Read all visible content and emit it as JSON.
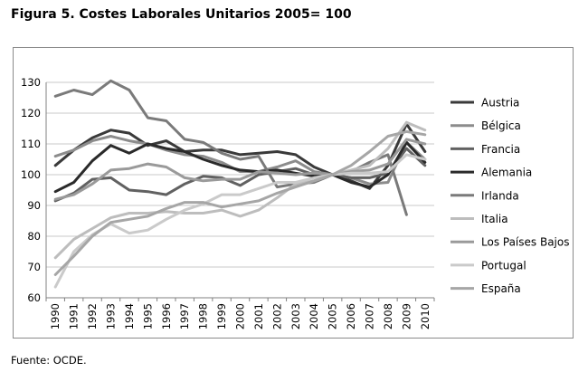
{
  "title": "Figura 5. Costes Laborales Unitarios 2005= 100",
  "source": "Fuente: OCDE.",
  "chart_data": {
    "type": "line",
    "title": "Figura 5. Costes Laborales Unitarios 2005= 100",
    "xlabel": "",
    "ylabel": "",
    "ylim": [
      60,
      130
    ],
    "yticks": [
      60,
      70,
      80,
      90,
      100,
      110,
      120,
      130
    ],
    "grid": true,
    "legend": "right",
    "x": [
      "1990",
      "1991",
      "1992",
      "1993",
      "1994",
      "1995",
      "1996",
      "1997",
      "1998",
      "1999",
      "2000",
      "2001",
      "2002",
      "2003",
      "2004",
      "2005",
      "2006",
      "2007",
      "2008",
      "2009",
      "2010"
    ],
    "series": [
      {
        "name": "Austria",
        "color": "#3a3a3a",
        "values": [
          103,
          108,
          112,
          114.5,
          113.5,
          109.5,
          111,
          107.5,
          108,
          108,
          106.5,
          107,
          107.5,
          106.5,
          102.5,
          100,
          98,
          95.5,
          103,
          116.5,
          107.5
        ]
      },
      {
        "name": "Bélgica",
        "color": "#8c8c8c",
        "values": [
          106,
          108,
          111,
          112.5,
          111,
          110,
          108,
          106.5,
          106,
          104,
          101,
          101,
          102.5,
          104.5,
          101,
          100,
          99,
          97,
          97.5,
          110.5,
          105
        ]
      },
      {
        "name": "Francia",
        "color": "#616161",
        "values": [
          91.5,
          94,
          98.5,
          99,
          95,
          94.5,
          93.5,
          97,
          99.5,
          99,
          96.5,
          100,
          101,
          102,
          100,
          100,
          99,
          99,
          100.5,
          108.5,
          103
        ]
      },
      {
        "name": "Alemania",
        "color": "#2a2a2a",
        "values": [
          94.5,
          97.5,
          104.5,
          109.5,
          107,
          110,
          108.5,
          107.5,
          105,
          103,
          101.5,
          101,
          101.5,
          100.5,
          99.5,
          100,
          97.5,
          96,
          100,
          110.5,
          104
        ]
      },
      {
        "name": "Irlanda",
        "color": "#7a7a7a",
        "values": [
          125.5,
          127.5,
          126,
          130.5,
          127.5,
          118.5,
          117.5,
          111.5,
          110.5,
          107,
          105,
          106,
          96,
          97,
          97.5,
          100,
          101,
          104,
          106.5,
          87,
          null
        ]
      },
      {
        "name": "Italia",
        "color": "#bdbdbd",
        "values": [
          73,
          79,
          82.5,
          86,
          87.5,
          87.5,
          88,
          87.5,
          87.5,
          88.5,
          86.5,
          88.5,
          92.5,
          97,
          98,
          100,
          101.5,
          103,
          108.5,
          117,
          114.5
        ]
      },
      {
        "name": "Los Países Bajos",
        "color": "#9a9a9a",
        "values": [
          92,
          93.5,
          97,
          101.5,
          102,
          103.5,
          102.5,
          99,
          98,
          98.5,
          98.5,
          101,
          100.5,
          100,
          100.5,
          100,
          101,
          101.5,
          103.5,
          111.5,
          110
        ]
      },
      {
        "name": "Portugal",
        "color": "#cacaca",
        "values": [
          63.5,
          75,
          80.5,
          84,
          81,
          82,
          85.5,
          88.5,
          90.5,
          93.5,
          93.5,
          95.5,
          97.5,
          97.5,
          99,
          100,
          100.5,
          100.5,
          101,
          106.5,
          105
        ]
      },
      {
        "name": "España",
        "color": "#a6a6a6",
        "values": [
          67.5,
          73.5,
          80,
          84.5,
          85.5,
          86.5,
          89,
          91,
          91,
          89.5,
          90.5,
          91.5,
          94,
          96,
          98,
          100,
          103,
          107.5,
          112.5,
          114,
          113
        ]
      }
    ]
  }
}
